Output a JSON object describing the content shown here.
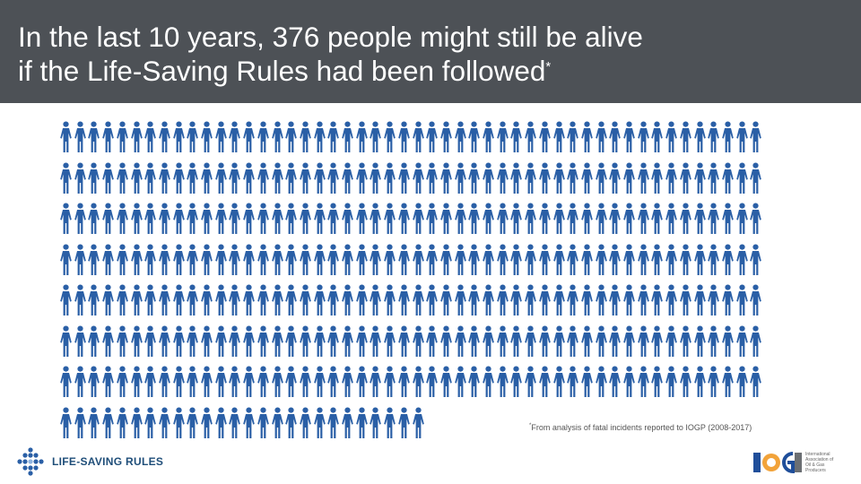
{
  "slide": {
    "title_line1": "In the last 10 years, 376 people might still be alive",
    "title_line2": "if the Life-Saving Rules had been followed",
    "title_marker": "*",
    "footnote_marker": "*",
    "footnote": "From analysis of fatal incidents reported to IOGP (2008-2017)"
  },
  "pictogram": {
    "count": 376,
    "per_row": 50,
    "icon": "person-icon",
    "color": "#2a5fa6"
  },
  "brand": {
    "name": "LIFE-SAVING RULES",
    "logo_icon": "dot-diamond-logo-icon",
    "logo_color": "#2a5fa6"
  },
  "iogp_logo": {
    "text": "IOGP",
    "caption": "International Association of Oil & Gas Producers"
  },
  "colors": {
    "header_bg": "#4d5156",
    "header_text": "#ffffff",
    "person": "#2a5fa6"
  }
}
